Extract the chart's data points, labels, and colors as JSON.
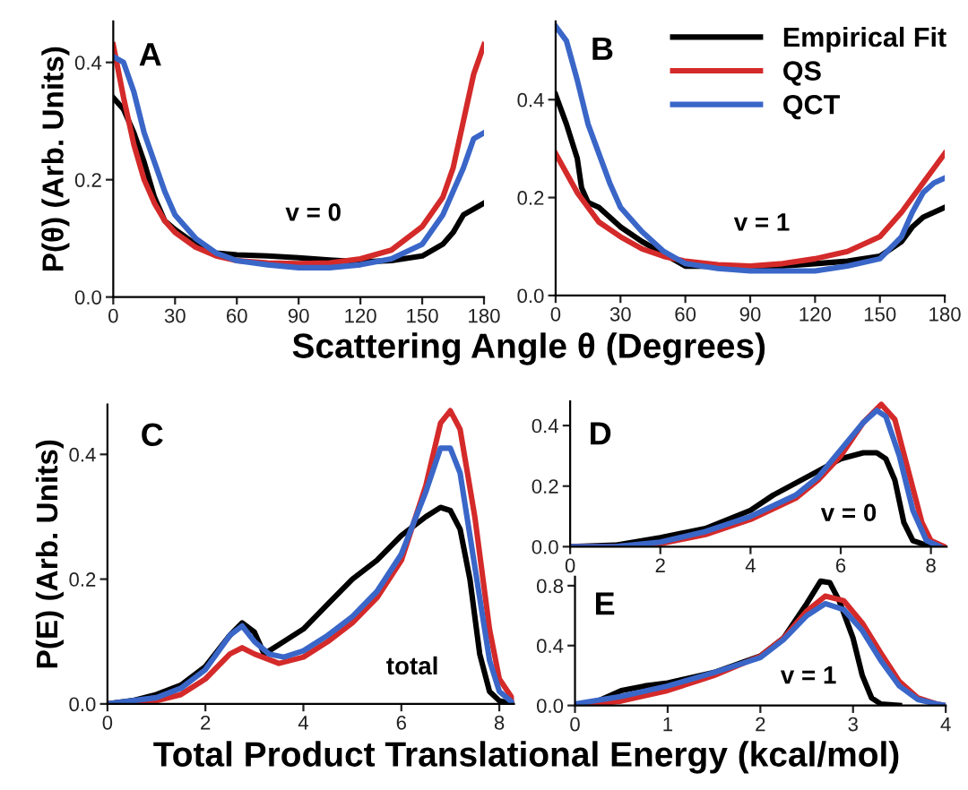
{
  "chart_data": [
    {
      "type": "line",
      "xlabel": "Scattering Angle θ (Degrees)",
      "ylabel": "P(θ) (Arb. Units)",
      "annotations": [
        "A",
        "v = 0"
      ],
      "xlim": [
        0,
        180
      ],
      "ylim": [
        0,
        0.47
      ],
      "xticks": [
        0,
        30,
        60,
        90,
        120,
        150,
        180
      ],
      "yticks": [
        {
          "value": 0,
          "label": "0.0"
        },
        {
          "value": 0.2,
          "label": "0.2"
        },
        {
          "value": 0.4,
          "label": "0.4"
        }
      ],
      "legend": false,
      "series": [
        {
          "color": "#000000",
          "x": [
            0,
            5,
            10,
            15,
            20,
            25,
            30,
            40,
            50,
            60,
            75,
            90,
            105,
            120,
            135,
            150,
            160,
            165,
            170,
            175,
            180
          ],
          "values": [
            0.34,
            0.32,
            0.28,
            0.23,
            0.17,
            0.13,
            0.115,
            0.09,
            0.075,
            0.072,
            0.07,
            0.067,
            0.063,
            0.06,
            0.062,
            0.07,
            0.09,
            0.11,
            0.14,
            0.15,
            0.16
          ]
        },
        {
          "color": "#d42a2a",
          "x": [
            0,
            5,
            10,
            15,
            20,
            25,
            30,
            40,
            50,
            60,
            75,
            90,
            105,
            120,
            135,
            150,
            160,
            165,
            170,
            175,
            180
          ],
          "values": [
            0.43,
            0.34,
            0.26,
            0.2,
            0.16,
            0.13,
            0.11,
            0.085,
            0.07,
            0.062,
            0.058,
            0.057,
            0.058,
            0.065,
            0.08,
            0.12,
            0.17,
            0.22,
            0.3,
            0.38,
            0.43
          ]
        },
        {
          "color": "#3a66c8",
          "x": [
            0,
            5,
            10,
            15,
            20,
            25,
            30,
            40,
            50,
            60,
            75,
            90,
            105,
            120,
            135,
            150,
            160,
            165,
            170,
            175,
            180
          ],
          "values": [
            0.41,
            0.4,
            0.35,
            0.28,
            0.23,
            0.18,
            0.14,
            0.1,
            0.075,
            0.062,
            0.055,
            0.05,
            0.05,
            0.055,
            0.065,
            0.09,
            0.14,
            0.18,
            0.22,
            0.27,
            0.28
          ]
        }
      ]
    },
    {
      "type": "line",
      "annotations": [
        "B",
        "v = 1"
      ],
      "xlim": [
        0,
        180
      ],
      "ylim": [
        0,
        0.56
      ],
      "xticks": [
        0,
        30,
        60,
        90,
        120,
        150,
        180
      ],
      "yticks": [
        {
          "value": 0,
          "label": "0.0"
        },
        {
          "value": 0.2,
          "label": "0.2"
        },
        {
          "value": 0.4,
          "label": "0.4"
        }
      ],
      "legend": "top right",
      "series": [
        {
          "name": "Empirical Fit",
          "color": "#000000",
          "x": [
            0,
            5,
            10,
            12,
            15,
            20,
            30,
            40,
            50,
            60,
            75,
            90,
            105,
            120,
            135,
            150,
            160,
            165,
            170,
            180
          ],
          "values": [
            0.41,
            0.35,
            0.28,
            0.22,
            0.19,
            0.18,
            0.14,
            0.11,
            0.085,
            0.06,
            0.06,
            0.058,
            0.06,
            0.065,
            0.07,
            0.08,
            0.11,
            0.14,
            0.16,
            0.18
          ]
        },
        {
          "name": "QS",
          "color": "#d42a2a",
          "x": [
            0,
            5,
            10,
            15,
            20,
            30,
            40,
            50,
            60,
            75,
            90,
            105,
            120,
            135,
            150,
            160,
            165,
            170,
            175,
            180
          ],
          "values": [
            0.29,
            0.25,
            0.21,
            0.18,
            0.15,
            0.12,
            0.095,
            0.08,
            0.07,
            0.063,
            0.06,
            0.065,
            0.075,
            0.09,
            0.12,
            0.17,
            0.2,
            0.23,
            0.26,
            0.29
          ]
        },
        {
          "name": "QCT",
          "color": "#3a66c8",
          "x": [
            0,
            5,
            10,
            15,
            20,
            25,
            30,
            40,
            50,
            60,
            75,
            90,
            105,
            120,
            135,
            150,
            160,
            165,
            170,
            175,
            180
          ],
          "values": [
            0.55,
            0.52,
            0.44,
            0.35,
            0.29,
            0.23,
            0.18,
            0.13,
            0.09,
            0.065,
            0.055,
            0.05,
            0.05,
            0.05,
            0.06,
            0.075,
            0.12,
            0.17,
            0.21,
            0.23,
            0.24
          ]
        }
      ]
    },
    {
      "type": "line",
      "xlabel": "Total Product Translational Energy (kcal/mol)",
      "ylabel": "P(E) (Arb. Units)",
      "annotations": [
        "C",
        "total"
      ],
      "xlim": [
        0,
        8.3
      ],
      "ylim": [
        0,
        0.48
      ],
      "xticks": [
        0,
        2,
        4,
        6,
        8
      ],
      "yticks": [
        {
          "value": 0,
          "label": "0.0"
        },
        {
          "value": 0.2,
          "label": "0.2"
        },
        {
          "value": 0.4,
          "label": "0.4"
        }
      ],
      "legend": false,
      "series": [
        {
          "color": "#000000",
          "x": [
            0,
            0.5,
            1,
            1.5,
            2,
            2.5,
            2.75,
            3,
            3.2,
            3.5,
            4,
            4.5,
            5,
            5.5,
            6,
            6.5,
            6.8,
            7,
            7.2,
            7.4,
            7.6,
            7.8,
            8,
            8.3
          ],
          "values": [
            0,
            0.005,
            0.015,
            0.03,
            0.06,
            0.11,
            0.13,
            0.115,
            0.08,
            0.095,
            0.12,
            0.16,
            0.2,
            0.23,
            0.27,
            0.3,
            0.315,
            0.31,
            0.28,
            0.2,
            0.08,
            0.02,
            0.005,
            0
          ]
        },
        {
          "color": "#d42a2a",
          "x": [
            0,
            1,
            1.5,
            2,
            2.5,
            2.75,
            3,
            3.5,
            4,
            4.5,
            5,
            5.5,
            6,
            6.5,
            6.8,
            7,
            7.2,
            7.5,
            7.8,
            8,
            8.3
          ],
          "values": [
            0,
            0.005,
            0.015,
            0.04,
            0.08,
            0.09,
            0.08,
            0.065,
            0.075,
            0.1,
            0.13,
            0.17,
            0.23,
            0.35,
            0.45,
            0.47,
            0.44,
            0.3,
            0.12,
            0.04,
            0.005
          ]
        },
        {
          "color": "#3a66c8",
          "x": [
            0,
            1,
            1.5,
            2,
            2.5,
            2.75,
            3,
            3.3,
            3.6,
            4,
            4.5,
            5,
            5.5,
            6,
            6.5,
            6.8,
            7,
            7.2,
            7.5,
            7.8,
            8,
            8.3
          ],
          "values": [
            0,
            0.01,
            0.025,
            0.055,
            0.11,
            0.125,
            0.1,
            0.08,
            0.075,
            0.085,
            0.11,
            0.14,
            0.18,
            0.24,
            0.34,
            0.41,
            0.41,
            0.37,
            0.22,
            0.07,
            0.02,
            0
          ]
        }
      ]
    },
    {
      "type": "line",
      "annotations": [
        "D",
        "v = 0"
      ],
      "xlim": [
        0,
        8.35
      ],
      "ylim": [
        0,
        0.48
      ],
      "xticks": [
        0,
        2,
        4,
        6,
        8
      ],
      "yticks": [
        {
          "value": 0,
          "label": "0.0"
        },
        {
          "value": 0.2,
          "label": "0.2"
        },
        {
          "value": 0.4,
          "label": "0.4"
        }
      ],
      "legend": false,
      "series": [
        {
          "color": "#000000",
          "x": [
            0,
            1,
            2,
            3,
            4,
            4.5,
            5,
            5.5,
            6,
            6.5,
            6.8,
            7,
            7.2,
            7.4,
            7.6,
            8
          ],
          "values": [
            0,
            0.005,
            0.03,
            0.06,
            0.12,
            0.17,
            0.21,
            0.25,
            0.29,
            0.31,
            0.31,
            0.29,
            0.22,
            0.08,
            0.02,
            0
          ]
        },
        {
          "color": "#d42a2a",
          "x": [
            0,
            1,
            2,
            3,
            4,
            5,
            5.5,
            6,
            6.5,
            6.9,
            7.2,
            7.5,
            7.8,
            8,
            8.3
          ],
          "values": [
            0,
            0,
            0.01,
            0.04,
            0.09,
            0.16,
            0.22,
            0.3,
            0.41,
            0.47,
            0.42,
            0.25,
            0.08,
            0.02,
            0
          ]
        },
        {
          "color": "#3a66c8",
          "x": [
            0,
            1,
            2,
            3,
            4,
            5,
            5.5,
            6,
            6.5,
            6.8,
            7,
            7.3,
            7.6,
            7.9,
            8.2
          ],
          "values": [
            0,
            0,
            0.015,
            0.05,
            0.1,
            0.17,
            0.23,
            0.32,
            0.41,
            0.45,
            0.43,
            0.3,
            0.12,
            0.02,
            0
          ]
        }
      ]
    },
    {
      "type": "line",
      "annotations": [
        "E",
        "v = 1"
      ],
      "xlim": [
        0,
        4
      ],
      "ylim": [
        0,
        0.86
      ],
      "xticks": [
        0,
        1,
        2,
        3,
        4
      ],
      "yticks": [
        {
          "value": 0,
          "label": "0.0"
        },
        {
          "value": 0.4,
          "label": "0.4"
        },
        {
          "value": 0.8,
          "label": "0.8"
        }
      ],
      "legend": false,
      "series": [
        {
          "color": "#000000",
          "x": [
            0,
            0.25,
            0.5,
            0.75,
            1,
            1.5,
            2,
            2.25,
            2.5,
            2.65,
            2.75,
            2.85,
            3,
            3.1,
            3.2,
            3.3,
            3.5
          ],
          "values": [
            0,
            0.03,
            0.1,
            0.13,
            0.15,
            0.22,
            0.33,
            0.45,
            0.68,
            0.83,
            0.82,
            0.7,
            0.45,
            0.2,
            0.05,
            0.01,
            0
          ]
        },
        {
          "color": "#d42a2a",
          "x": [
            0,
            0.25,
            0.5,
            1,
            1.5,
            2,
            2.25,
            2.5,
            2.7,
            2.9,
            3.1,
            3.3,
            3.5,
            3.7,
            3.9,
            4
          ],
          "values": [
            0,
            0.01,
            0.03,
            0.1,
            0.2,
            0.33,
            0.45,
            0.63,
            0.73,
            0.7,
            0.55,
            0.35,
            0.16,
            0.05,
            0.01,
            0
          ]
        },
        {
          "color": "#3a66c8",
          "x": [
            0,
            0.5,
            1,
            1.5,
            2,
            2.25,
            2.5,
            2.7,
            2.9,
            3.1,
            3.3,
            3.5,
            3.7,
            3.9,
            4
          ],
          "values": [
            0.01,
            0.06,
            0.13,
            0.22,
            0.32,
            0.44,
            0.6,
            0.68,
            0.64,
            0.5,
            0.3,
            0.13,
            0.04,
            0.01,
            0
          ]
        }
      ]
    }
  ]
}
